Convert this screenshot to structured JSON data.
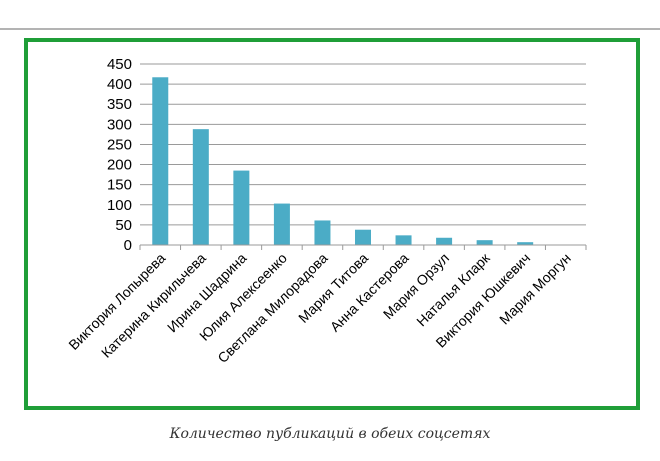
{
  "caption": "Количество публикаций в обеих соцсетях",
  "colors": {
    "bar": "#4bacc6",
    "frame": "#1f9e38",
    "grid": "#9a9a9a",
    "axis": "#9a9a9a"
  },
  "chart_data": {
    "type": "bar",
    "categories": [
      "Виктория Лопырева",
      "Катерина Кирильчева",
      "Ирина Шадрина",
      "Юлия Алексеенко",
      "Светлана Милорадова",
      "Мария Титова",
      "Анна Кастерова",
      "Мария Орзул",
      "Наталья Кларк",
      "Виктория Юшкевич",
      "Мария Моргун"
    ],
    "values": [
      417,
      288,
      185,
      103,
      61,
      38,
      24,
      18,
      12,
      7,
      1
    ],
    "ylim": [
      0,
      450
    ],
    "yticks": [
      "0",
      "50",
      "100",
      "150",
      "200",
      "250",
      "300",
      "350",
      "400",
      "450"
    ],
    "grid": true,
    "legend": "none"
  }
}
